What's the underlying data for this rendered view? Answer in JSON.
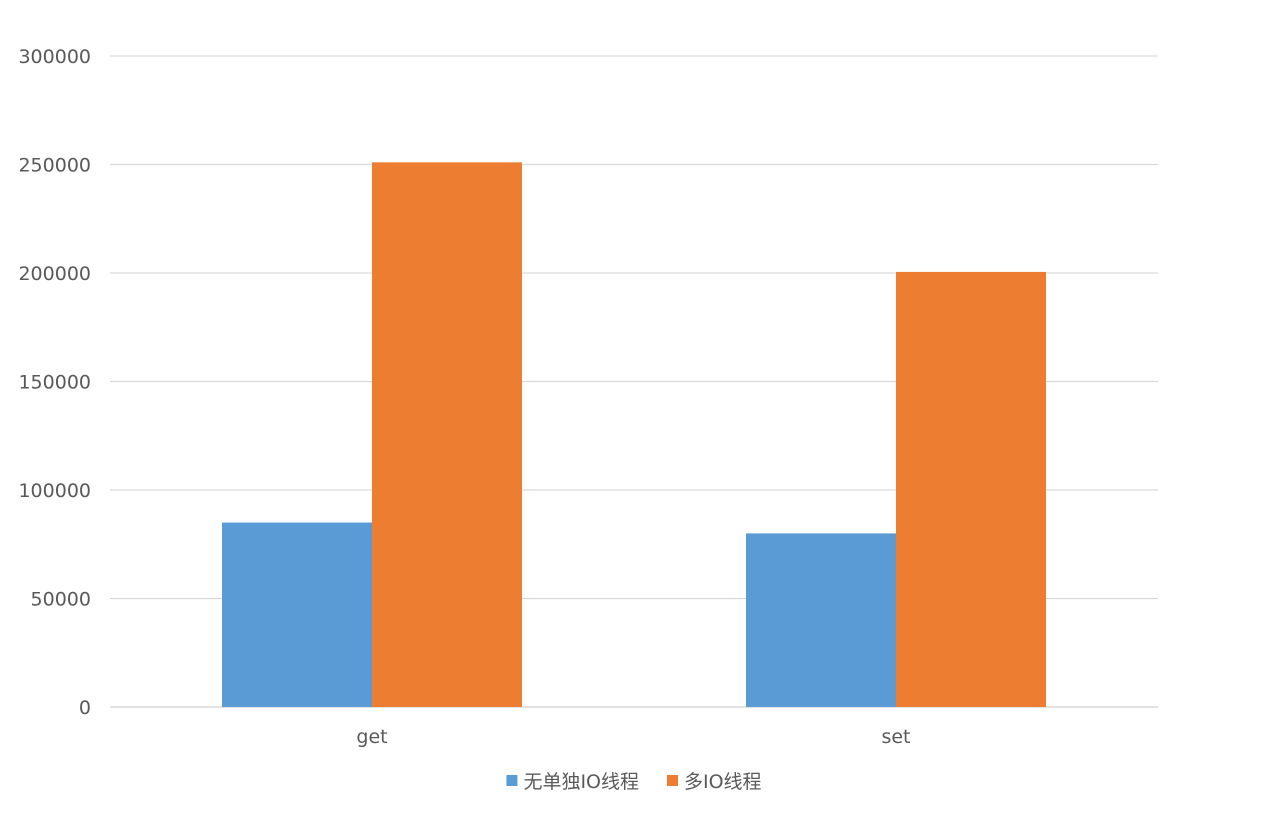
{
  "chart_data": {
    "type": "bar",
    "categories": [
      "get",
      "set"
    ],
    "series": [
      {
        "name": "无单独IO线程",
        "values": [
          85000,
          80000
        ],
        "color": "#5B9BD5"
      },
      {
        "name": "多IO线程",
        "values": [
          251000,
          200500
        ],
        "color": "#ED7D31"
      }
    ],
    "yticks": [
      "0",
      "50000",
      "100000",
      "150000",
      "200000",
      "250000",
      "300000"
    ],
    "ylim": [
      0,
      300000
    ],
    "grid": true,
    "gridColor": "#D9D9D9",
    "legend": "bottom",
    "title": "",
    "xlabel": "",
    "ylabel": ""
  }
}
